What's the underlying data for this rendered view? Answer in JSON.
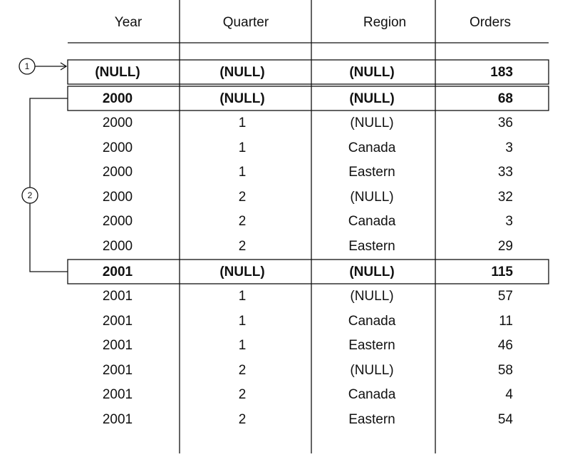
{
  "table": {
    "headers": [
      "Year",
      "Quarter",
      "Region",
      "Orders"
    ],
    "rows": [
      [
        "(NULL)",
        "(NULL)",
        "(NULL)",
        183
      ],
      [
        2000,
        "(NULL)",
        "(NULL)",
        68
      ],
      [
        2000,
        1,
        "(NULL)",
        36
      ],
      [
        2000,
        1,
        "Canada",
        3
      ],
      [
        2000,
        1,
        "Eastern",
        33
      ],
      [
        2000,
        2,
        "(NULL)",
        32
      ],
      [
        2000,
        2,
        "Canada",
        3
      ],
      [
        2000,
        2,
        "Eastern",
        29
      ],
      [
        2001,
        "(NULL)",
        "(NULL)",
        115
      ],
      [
        2001,
        1,
        "(NULL)",
        57
      ],
      [
        2001,
        1,
        "Canada",
        11
      ],
      [
        2001,
        1,
        "Eastern",
        46
      ],
      [
        2001,
        2,
        "(NULL)",
        58
      ],
      [
        2001,
        2,
        "Canada",
        4
      ],
      [
        2001,
        2,
        "Eastern",
        54
      ]
    ]
  },
  "callouts": [
    "1",
    "2"
  ]
}
